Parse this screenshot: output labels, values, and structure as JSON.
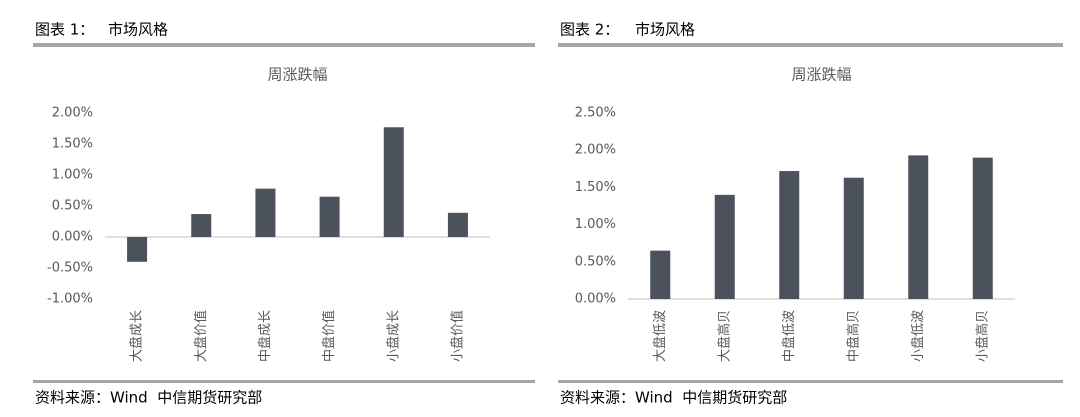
{
  "figures": [
    {
      "label": "图表 1：",
      "title": "市场风格",
      "source": "资料来源：Wind  中信期货研究部"
    },
    {
      "label": "图表 2：",
      "title": "市场风格",
      "source": "资料来源：Wind  中信期货研究部"
    }
  ],
  "chart_data": [
    {
      "type": "bar",
      "title": "周涨跌幅",
      "categories": [
        "大盘成长",
        "大盘价值",
        "中盘成长",
        "中盘价值",
        "小盘成长",
        "小盘价值"
      ],
      "values": [
        -0.4,
        0.37,
        0.78,
        0.65,
        1.77,
        0.39
      ],
      "color": "#4b525c",
      "ylim": [
        -1,
        2
      ],
      "yticks": [
        {
          "value": -1,
          "label": "-1.00%"
        },
        {
          "value": -0.5,
          "label": "-0.50%"
        },
        {
          "value": 0,
          "label": "0.00%"
        },
        {
          "value": 0.5,
          "label": "0.50%"
        },
        {
          "value": 1,
          "label": "1.00%"
        },
        {
          "value": 1.5,
          "label": "1.50%"
        },
        {
          "value": 2,
          "label": "2.00%"
        }
      ],
      "grid": false
    },
    {
      "type": "bar",
      "title": "周涨跌幅",
      "categories": [
        "大盘低波",
        "大盘高贝",
        "中盘低波",
        "中盘高贝",
        "小盘低波",
        "小盘高贝"
      ],
      "values": [
        0.65,
        1.4,
        1.72,
        1.63,
        1.93,
        1.9
      ],
      "color": "#4b525c",
      "ylim": [
        0,
        2.5
      ],
      "yticks": [
        {
          "value": 0,
          "label": "0.00%"
        },
        {
          "value": 0.5,
          "label": "0.50%"
        },
        {
          "value": 1,
          "label": "1.00%"
        },
        {
          "value": 1.5,
          "label": "1.50%"
        },
        {
          "value": 2,
          "label": "2.00%"
        },
        {
          "value": 2.5,
          "label": "2.50%"
        }
      ],
      "grid": false
    }
  ]
}
